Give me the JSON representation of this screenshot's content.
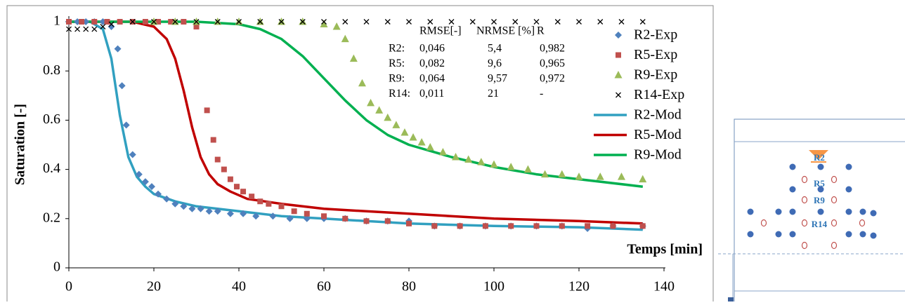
{
  "chart_data": {
    "type": "scatter",
    "ylabel": "Saturation  [-]",
    "xlabel": "Temps [min]",
    "xlim": [
      0,
      140
    ],
    "xticks": [
      0,
      20,
      40,
      60,
      80,
      100,
      120,
      140
    ],
    "ylim": [
      0,
      1
    ],
    "yticks": [
      0,
      0.2,
      0.4,
      0.6,
      0.8,
      1
    ],
    "grid": false,
    "legend": "right",
    "series": [
      {
        "name": "R2-Exp",
        "kind": "scatter",
        "marker": "diamond",
        "color": "#4f81bd",
        "x": [
          0,
          2,
          4,
          6,
          8,
          10,
          11.5,
          12.5,
          13.5,
          15,
          16.5,
          18,
          19.5,
          21,
          23,
          25,
          27,
          29,
          31,
          33,
          35,
          38,
          41,
          44,
          48,
          52,
          56,
          60,
          65,
          70,
          75,
          80,
          86,
          92,
          98,
          104,
          110,
          116,
          122,
          128,
          135
        ],
        "values": [
          1,
          1,
          1,
          1,
          1,
          0.98,
          0.89,
          0.74,
          0.58,
          0.46,
          0.38,
          0.35,
          0.33,
          0.3,
          0.28,
          0.26,
          0.25,
          0.24,
          0.24,
          0.23,
          0.23,
          0.22,
          0.22,
          0.21,
          0.21,
          0.2,
          0.2,
          0.2,
          0.2,
          0.19,
          0.19,
          0.19,
          0.17,
          0.17,
          0.17,
          0.17,
          0.17,
          0.17,
          0.16,
          0.17,
          0.17
        ]
      },
      {
        "name": "R5-Exp",
        "kind": "scatter",
        "marker": "square",
        "color": "#c0504d",
        "x": [
          0,
          3,
          6,
          9,
          12,
          15,
          18,
          21,
          24,
          27,
          30,
          32.5,
          34,
          35,
          36.5,
          38,
          39.5,
          41,
          43,
          45,
          47,
          50,
          53,
          56,
          60,
          65,
          70,
          75,
          80,
          86,
          92,
          98,
          104,
          110,
          116,
          122,
          128,
          135
        ],
        "values": [
          1,
          1,
          1,
          1,
          1,
          1,
          1,
          1,
          1,
          1,
          0.98,
          0.64,
          0.52,
          0.44,
          0.4,
          0.36,
          0.33,
          0.31,
          0.29,
          0.27,
          0.26,
          0.25,
          0.23,
          0.22,
          0.21,
          0.2,
          0.19,
          0.19,
          0.18,
          0.17,
          0.17,
          0.17,
          0.17,
          0.17,
          0.17,
          0.17,
          0.17,
          0.17
        ]
      },
      {
        "name": "R9-Exp",
        "kind": "scatter",
        "marker": "triangle",
        "color": "#9bbb59",
        "x": [
          20,
          25,
          30,
          35,
          40,
          45,
          50,
          55,
          60,
          63,
          65,
          67,
          69,
          71,
          73,
          75,
          77,
          79,
          81,
          83,
          85,
          88,
          91,
          94,
          97,
          100,
          104,
          108,
          112,
          116,
          120,
          125,
          130,
          135
        ],
        "values": [
          1,
          1,
          1,
          1,
          1,
          1,
          1,
          1,
          0.99,
          0.98,
          0.93,
          0.85,
          0.75,
          0.67,
          0.64,
          0.61,
          0.58,
          0.55,
          0.53,
          0.51,
          0.49,
          0.47,
          0.45,
          0.44,
          0.43,
          0.42,
          0.41,
          0.4,
          0.38,
          0.38,
          0.37,
          0.37,
          0.37,
          0.36
        ]
      },
      {
        "name": "R14-Exp",
        "kind": "scatter",
        "marker": "cross",
        "color": "#000000",
        "x": [
          0,
          2,
          4,
          6,
          8,
          10,
          15,
          20,
          25,
          30,
          35,
          40,
          45,
          50,
          55,
          60,
          65,
          70,
          75,
          80,
          85,
          90,
          95,
          100,
          105,
          110,
          115,
          120,
          125,
          130,
          135
        ],
        "values": [
          0.97,
          0.97,
          0.97,
          0.97,
          0.98,
          0.99,
          1,
          1,
          1,
          1,
          1,
          1,
          1,
          1,
          1,
          1,
          1,
          1,
          1,
          1,
          1,
          1,
          1,
          1,
          1,
          1,
          1,
          1,
          1,
          1,
          1
        ]
      },
      {
        "name": "R2-Mod",
        "kind": "line",
        "color": "#31a0c0",
        "x": [
          0,
          5,
          8,
          10,
          12,
          14,
          16,
          18,
          20,
          25,
          30,
          40,
          50,
          60,
          80,
          100,
          120,
          135
        ],
        "values": [
          1,
          1,
          0.97,
          0.85,
          0.62,
          0.45,
          0.37,
          0.33,
          0.3,
          0.27,
          0.25,
          0.23,
          0.21,
          0.2,
          0.18,
          0.17,
          0.165,
          0.155
        ]
      },
      {
        "name": "R5-Mod",
        "kind": "line",
        "color": "#c00000",
        "x": [
          0,
          15,
          20,
          23,
          25,
          27,
          29,
          31,
          33,
          35,
          38,
          42,
          50,
          60,
          80,
          100,
          120,
          135
        ],
        "values": [
          1,
          1,
          0.98,
          0.93,
          0.85,
          0.72,
          0.57,
          0.45,
          0.38,
          0.34,
          0.31,
          0.28,
          0.26,
          0.24,
          0.22,
          0.2,
          0.19,
          0.18
        ]
      },
      {
        "name": "R9-Mod",
        "kind": "line",
        "color": "#00b050",
        "x": [
          0,
          30,
          40,
          45,
          50,
          55,
          60,
          65,
          70,
          75,
          80,
          90,
          100,
          110,
          120,
          135
        ],
        "values": [
          1,
          1,
          0.99,
          0.97,
          0.93,
          0.86,
          0.77,
          0.68,
          0.6,
          0.54,
          0.5,
          0.45,
          0.41,
          0.38,
          0.36,
          0.33
        ]
      }
    ],
    "stats_table": {
      "header": [
        "RMSE[-]",
        "NRMSE [%]",
        "R"
      ],
      "rows": [
        [
          "R2:",
          "0,046",
          "5,4",
          "0,982"
        ],
        [
          "R5:",
          "0,082",
          "9,6",
          "0,965"
        ],
        [
          "R9:",
          "0,064",
          "9,57",
          "0,972"
        ],
        [
          "R14:",
          "0,011",
          "21",
          "-"
        ]
      ]
    }
  },
  "diagram": {
    "labels": [
      "R2",
      "R5",
      "R9",
      "R14"
    ]
  }
}
